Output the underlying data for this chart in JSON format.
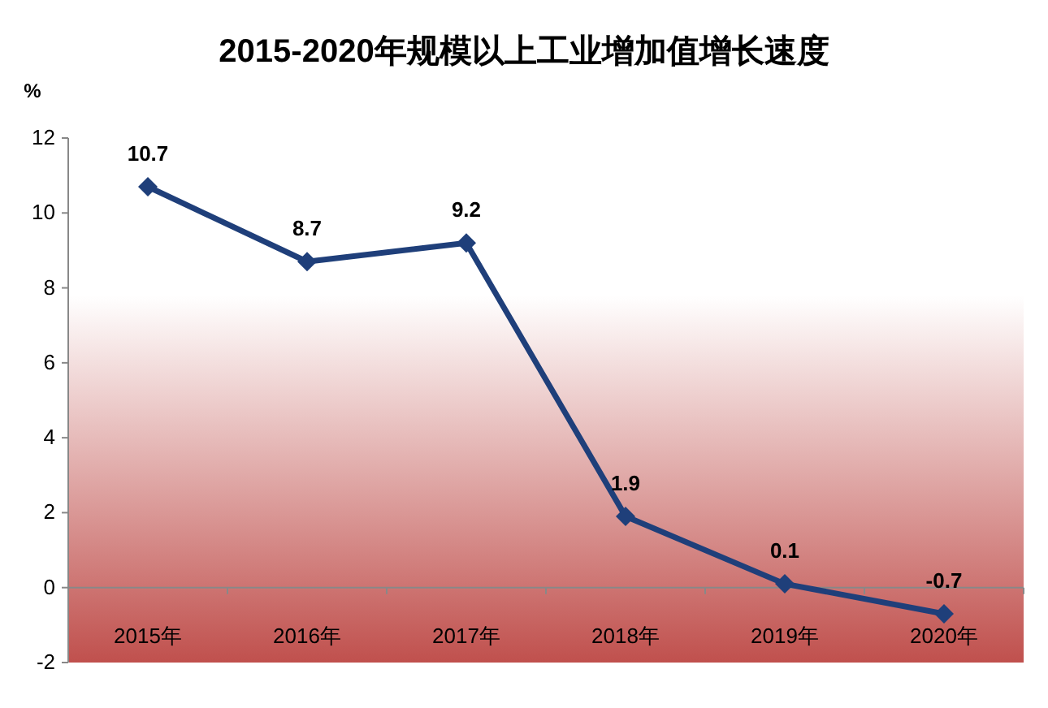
{
  "chart_data": {
    "type": "line",
    "title": "2015-2020年规模以上工业增加值增长速度",
    "ylabel": "%",
    "categories": [
      "2015年",
      "2016年",
      "2017年",
      "2018年",
      "2019年",
      "2020年"
    ],
    "series": [
      {
        "color": "#1f3f7a",
        "values": [
          10.7,
          8.7,
          9.2,
          1.9,
          0.1,
          -0.7
        ]
      }
    ],
    "ylim": [
      -2,
      12
    ],
    "yticks": [
      -2,
      0,
      2,
      4,
      6,
      8,
      10,
      12
    ],
    "data_labels": true,
    "marker": "diamond",
    "line_style": "solid"
  }
}
